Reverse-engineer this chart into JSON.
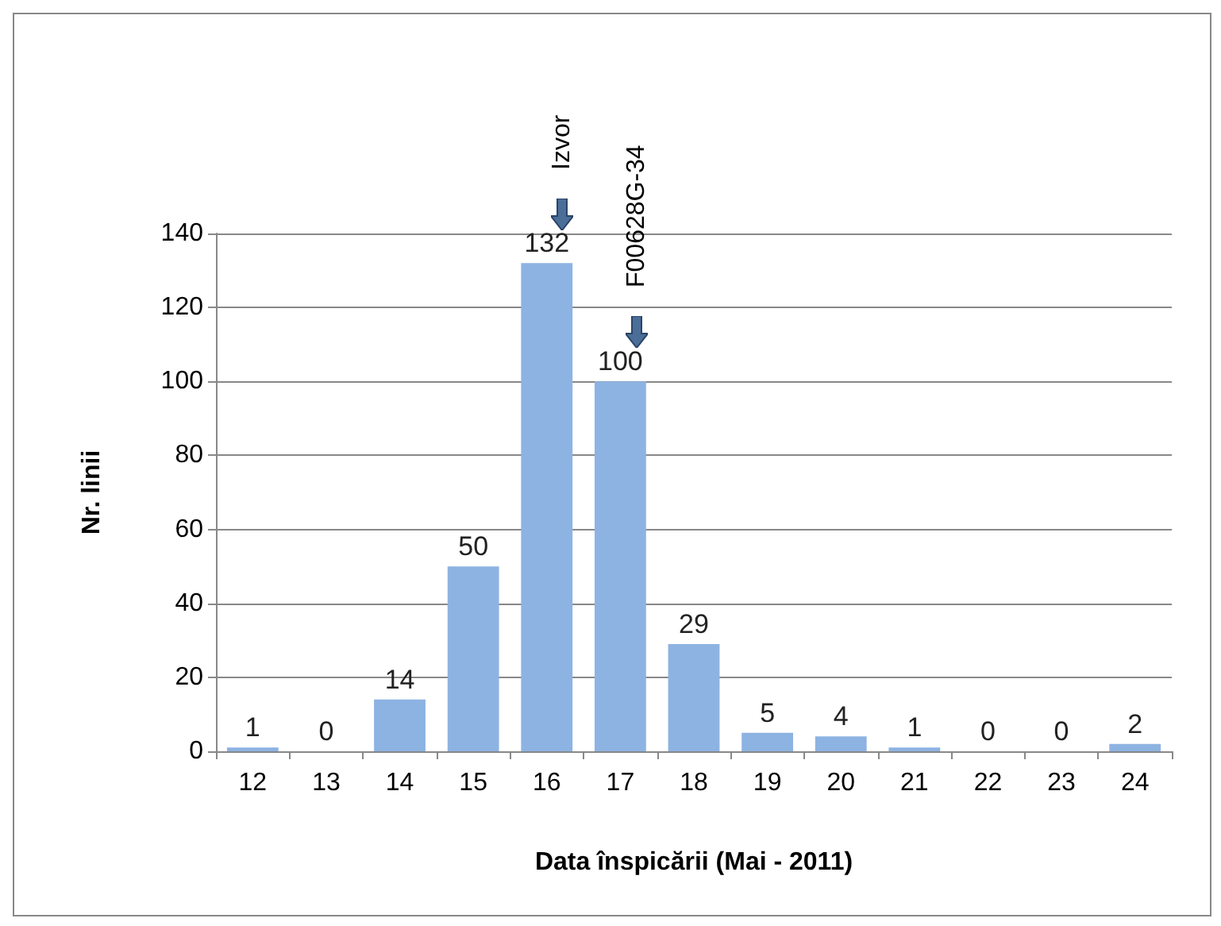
{
  "chart_data": {
    "type": "bar",
    "xlabel": "Data înspicării (Mai - 2011)",
    "ylabel": "Nr. linii",
    "categories": [
      "12",
      "13",
      "14",
      "15",
      "16",
      "17",
      "18",
      "19",
      "20",
      "21",
      "22",
      "23",
      "24"
    ],
    "values": [
      1,
      0,
      14,
      50,
      132,
      100,
      29,
      5,
      4,
      1,
      0,
      0,
      2
    ],
    "color": "#8db3e2",
    "ylim": [
      0,
      140
    ],
    "yticks": [
      0,
      20,
      40,
      60,
      80,
      100,
      120,
      140
    ],
    "grid": "y",
    "data_labels": true,
    "annotations": [
      "Izvor",
      "F00628G-34"
    ]
  }
}
